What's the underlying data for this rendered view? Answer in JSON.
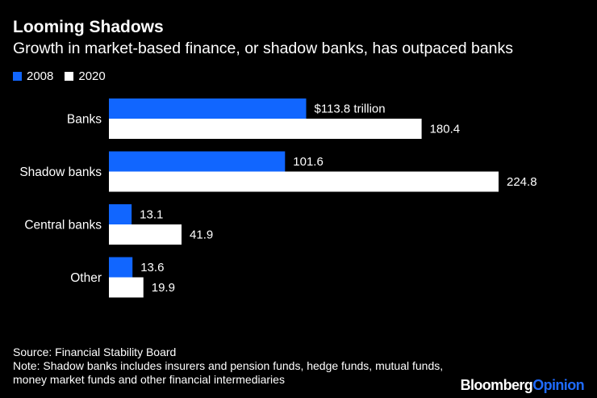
{
  "header": {
    "title": "Looming Shadows",
    "subtitle": "Growth in market-based finance, or shadow banks, has outpaced banks"
  },
  "legend": {
    "items": [
      {
        "label": "2008",
        "color": "#1166ff"
      },
      {
        "label": "2020",
        "color": "#ffffff"
      }
    ]
  },
  "chart_data": {
    "type": "bar",
    "orientation": "horizontal",
    "categories": [
      "Banks",
      "Shadow banks",
      "Central banks",
      "Other"
    ],
    "series": [
      {
        "name": "2008",
        "color": "#1166ff",
        "values": [
          113.8,
          101.6,
          13.1,
          13.6
        ]
      },
      {
        "name": "2020",
        "color": "#ffffff",
        "values": [
          180.4,
          224.8,
          41.9,
          19.9
        ]
      }
    ],
    "data_labels": [
      [
        "$113.8 trillion",
        "101.6",
        "13.1",
        "13.6"
      ],
      [
        "180.4",
        "224.8",
        "41.9",
        "19.9"
      ]
    ],
    "xlim": [
      0,
      224.8
    ],
    "grid": false,
    "legend_position": "top-left"
  },
  "footer": {
    "source": "Source: Financial Stability Board",
    "note": "Note: Shadow banks includes insurers and pension funds, hedge funds, mutual funds, money market funds and other financial intermediaries",
    "brand_bloomberg": "Bloomberg",
    "brand_opinion": "Opinion"
  }
}
